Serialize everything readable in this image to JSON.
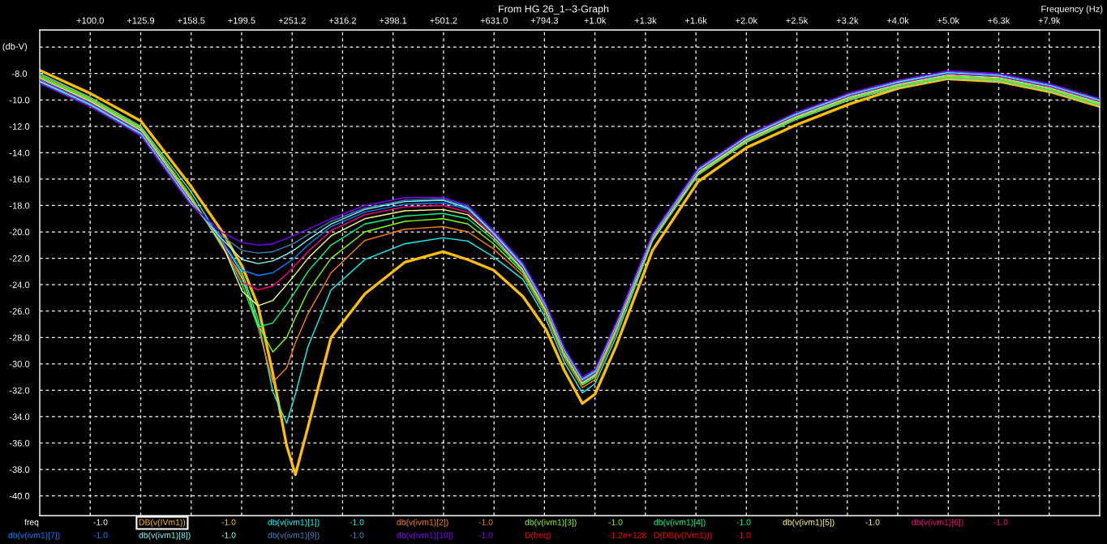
{
  "chart_data": {
    "type": "line",
    "title": "From HG 26_1--3-Graph",
    "xlabel": "Frequency (Hz)",
    "ylabel": "(db-V)",
    "log": "x",
    "grid": true,
    "legend": "bottom",
    "line_style": "solid",
    "xlim": [
      79.43,
      10000
    ],
    "xticks": [
      {
        "value": 100,
        "label": "+100.0"
      },
      {
        "value": 125.9,
        "label": "+125.9"
      },
      {
        "value": 158.5,
        "label": "+158.5"
      },
      {
        "value": 199.5,
        "label": "+199.5"
      },
      {
        "value": 251.2,
        "label": "+251.2"
      },
      {
        "value": 316.2,
        "label": "+316.2"
      },
      {
        "value": 398.1,
        "label": "+398.1"
      },
      {
        "value": 501.2,
        "label": "+501.2"
      },
      {
        "value": 631.0,
        "label": "+631.0"
      },
      {
        "value": 794.3,
        "label": "+794.3"
      },
      {
        "value": 1000,
        "label": "+1.0k"
      },
      {
        "value": 1259,
        "label": "+1.3k"
      },
      {
        "value": 1585,
        "label": "+1.6k"
      },
      {
        "value": 1995,
        "label": "+2.0k"
      },
      {
        "value": 2512,
        "label": "+2.5k"
      },
      {
        "value": 3162,
        "label": "+3.2k"
      },
      {
        "value": 3981,
        "label": "+4.0k"
      },
      {
        "value": 5012,
        "label": "+5.0k"
      },
      {
        "value": 6310,
        "label": "+6.3k"
      },
      {
        "value": 7943,
        "label": "+7.9k"
      }
    ],
    "ylim": [
      -41.5,
      -4.7
    ],
    "yticks": [
      {
        "value": -6,
        "label": null
      },
      {
        "value": -8,
        "label": "-8.0"
      },
      {
        "value": -10,
        "label": "-10.0"
      },
      {
        "value": -12,
        "label": "-12.0"
      },
      {
        "value": -14,
        "label": "-14.0"
      },
      {
        "value": -16,
        "label": "-16.0"
      },
      {
        "value": -18,
        "label": "-18.0"
      },
      {
        "value": -20,
        "label": "-20.0"
      },
      {
        "value": -22,
        "label": "-22.0"
      },
      {
        "value": -24,
        "label": "-24.0"
      },
      {
        "value": -26,
        "label": "-26.0"
      },
      {
        "value": -28,
        "label": "-28.0"
      },
      {
        "value": -30,
        "label": "-30.0"
      },
      {
        "value": -32,
        "label": "-32.0"
      },
      {
        "value": -34,
        "label": "-34.0"
      },
      {
        "value": -36,
        "label": "-36.0"
      },
      {
        "value": -38,
        "label": "-38.0"
      },
      {
        "value": -40,
        "label": "-40.0"
      }
    ],
    "x": [
      79.43,
      100,
      126,
      158,
      182,
      200,
      215,
      230,
      245,
      255,
      270,
      300,
      350,
      420,
      500,
      560,
      630,
      720,
      800,
      870,
      944,
      1000,
      1100,
      1300,
      1600,
      2000,
      2500,
      3200,
      4000,
      5000,
      6300,
      8000,
      10000
    ],
    "series": [
      {
        "name": "DB(v(IVm1))",
        "color": "#ffbf00",
        "values": [
          -7.75,
          -9.5,
          -11.6,
          -16.5,
          -19.9,
          -22.6,
          -25.6,
          -30.7,
          -36.2,
          -38.4,
          -34.8,
          -28.0,
          -24.7,
          -22.3,
          -21.5,
          -22.1,
          -22.9,
          -24.9,
          -27.4,
          -30.5,
          -33.0,
          -32.3,
          -28.7,
          -21.4,
          -16.2,
          -13.6,
          -11.9,
          -10.3,
          -9.1,
          -8.4,
          -8.6,
          -9.4,
          -10.5
        ]
      },
      {
        "name": "db(v(ivm1)[1])",
        "color": "#00ffff",
        "values": [
          -8.0,
          -9.8,
          -12.0,
          -16.9,
          -20.7,
          -23.1,
          -26.6,
          -32.1,
          -34.5,
          -32.3,
          -28.7,
          -24.4,
          -22.1,
          -20.9,
          -20.45,
          -20.7,
          -21.9,
          -23.6,
          -26.6,
          -29.9,
          -32.2,
          -31.5,
          -28.0,
          -20.7,
          -15.7,
          -13.2,
          -11.5,
          -10.0,
          -9.04,
          -8.34,
          -8.54,
          -9.34,
          -10.44
        ]
      },
      {
        "name": "db(v(ivm1)[2])",
        "color": "#ff8000",
        "values": [
          -8.1,
          -9.88,
          -12.08,
          -17.2,
          -21.1,
          -23.3,
          -27.2,
          -31.4,
          -30.3,
          -28.4,
          -26.2,
          -23.1,
          -20.65,
          -19.8,
          -19.6,
          -20.0,
          -21.3,
          -23.3,
          -26.3,
          -29.6,
          -31.8,
          -31.2,
          -27.7,
          -20.64,
          -15.64,
          -13.14,
          -11.44,
          -9.94,
          -8.98,
          -8.28,
          -8.48,
          -9.28,
          -10.38
        ]
      },
      {
        "name": "db(v(ivm1)[3])",
        "color": "#80ff00",
        "values": [
          -8.2,
          -9.96,
          -12.16,
          -17.35,
          -21.0,
          -23.5,
          -27.0,
          -29.1,
          -28.0,
          -26.5,
          -24.5,
          -22.0,
          -20.0,
          -19.2,
          -19.0,
          -19.4,
          -20.9,
          -23.1,
          -26.1,
          -29.4,
          -31.6,
          -31.0,
          -27.5,
          -20.58,
          -15.58,
          -13.08,
          -11.38,
          -9.88,
          -8.92,
          -8.22,
          -8.42,
          -9.22,
          -10.32
        ]
      },
      {
        "name": "db(v(ivm1)[4])",
        "color": "#00ff80",
        "values": [
          -8.28,
          -10.04,
          -12.24,
          -17.45,
          -20.9,
          -24.0,
          -27.2,
          -26.9,
          -25.5,
          -24.5,
          -23.0,
          -21.0,
          -19.4,
          -18.8,
          -18.6,
          -19.0,
          -20.6,
          -22.95,
          -26.0,
          -29.3,
          -31.5,
          -30.9,
          -27.4,
          -20.52,
          -15.52,
          -13.02,
          -11.32,
          -9.82,
          -8.86,
          -8.16,
          -8.36,
          -9.16,
          -10.26
        ]
      },
      {
        "name": "db(v(ivm1)[5])",
        "color": "#ffff80",
        "values": [
          -8.36,
          -10.12,
          -12.32,
          -17.55,
          -20.8,
          -24.5,
          -25.6,
          -25.2,
          -24.0,
          -23.2,
          -22.0,
          -20.3,
          -19.0,
          -18.4,
          -18.3,
          -18.7,
          -20.4,
          -22.85,
          -25.9,
          -29.2,
          -31.42,
          -30.82,
          -27.32,
          -20.46,
          -15.46,
          -12.96,
          -11.26,
          -9.76,
          -8.8,
          -8.1,
          -8.3,
          -9.1,
          -10.2
        ]
      },
      {
        "name": "db(v(ivm1)[6])",
        "color": "#ff0080",
        "values": [
          -8.44,
          -10.2,
          -12.4,
          -17.62,
          -20.7,
          -23.8,
          -24.4,
          -24.1,
          -23.2,
          -22.5,
          -21.5,
          -19.9,
          -18.7,
          -18.1,
          -18.0,
          -18.5,
          -20.3,
          -22.75,
          -25.8,
          -29.12,
          -31.34,
          -30.74,
          -27.24,
          -20.4,
          -15.4,
          -12.9,
          -11.2,
          -9.7,
          -8.74,
          -8.04,
          -8.24,
          -9.04,
          -10.14
        ]
      },
      {
        "name": "db(v(ivm1)[7])",
        "color": "#0080ff",
        "values": [
          -8.52,
          -10.28,
          -12.48,
          -17.7,
          -20.6,
          -22.9,
          -23.3,
          -23.1,
          -22.4,
          -21.9,
          -21.0,
          -19.6,
          -18.5,
          -17.9,
          -17.8,
          -18.3,
          -20.2,
          -22.65,
          -25.7,
          -29.04,
          -31.26,
          -30.66,
          -27.16,
          -20.34,
          -15.34,
          -12.84,
          -11.14,
          -9.64,
          -8.68,
          -7.98,
          -8.18,
          -8.98,
          -10.08
        ]
      },
      {
        "name": "db(v(ivm1)[8])",
        "color": "#80ffff",
        "values": [
          -8.6,
          -10.36,
          -12.56,
          -17.78,
          -20.5,
          -22.1,
          -22.4,
          -22.2,
          -21.7,
          -21.3,
          -20.6,
          -19.4,
          -18.3,
          -17.7,
          -17.6,
          -18.2,
          -20.1,
          -22.55,
          -25.62,
          -28.96,
          -31.18,
          -30.58,
          -27.08,
          -20.28,
          -15.28,
          -12.78,
          -11.08,
          -9.58,
          -8.62,
          -7.92,
          -8.12,
          -8.92,
          -10.02
        ]
      },
      {
        "name": "db(v(ivm1)[9])",
        "color": "#4080c0",
        "values": [
          -8.68,
          -10.44,
          -12.64,
          -17.86,
          -20.3,
          -21.4,
          -21.6,
          -21.5,
          -21.1,
          -20.8,
          -20.2,
          -19.2,
          -18.2,
          -17.6,
          -17.5,
          -18.1,
          -20.0,
          -22.45,
          -25.54,
          -28.88,
          -31.1,
          -30.5,
          -27.0,
          -20.22,
          -15.22,
          -12.72,
          -11.02,
          -9.52,
          -8.56,
          -7.86,
          -8.06,
          -8.86,
          -9.96
        ]
      },
      {
        "name": "db(v(ivm1)[10])",
        "color": "#8000ff",
        "values": [
          -8.76,
          -10.52,
          -12.72,
          -17.94,
          -20.0,
          -20.8,
          -21.0,
          -20.9,
          -20.5,
          -20.2,
          -19.8,
          -19.0,
          -18.0,
          -17.4,
          -17.4,
          -18.0,
          -19.9,
          -22.35,
          -25.46,
          -28.8,
          -31.02,
          -30.42,
          -26.92,
          -20.16,
          -15.16,
          -12.66,
          -10.96,
          -9.46,
          -8.5,
          -7.8,
          -8.0,
          -8.8,
          -9.9
        ]
      }
    ],
    "annotations": [
      "freq",
      "-1.0",
      "-1.0",
      "-1.0",
      "-1.0",
      "-1.0",
      "-1.0",
      "-1.0",
      "-1.0",
      "-1.0",
      "-1.0",
      "-1.0",
      "-1.0",
      "D(freq)",
      "-1.2e+128",
      "D(DB(v(IVm1)))",
      "-1.0"
    ]
  }
}
